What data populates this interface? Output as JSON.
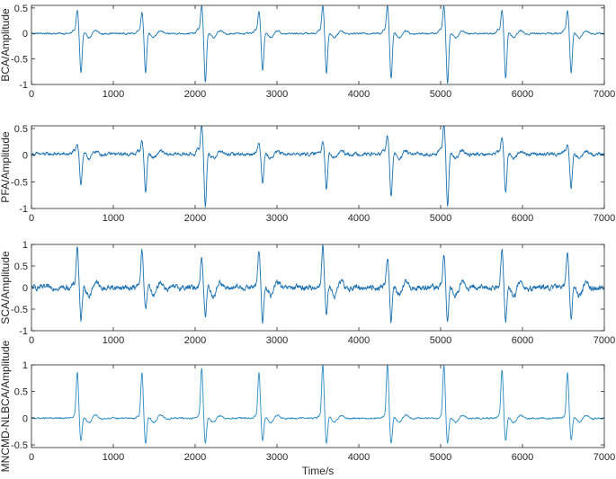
{
  "chart_data": [
    {
      "type": "line",
      "ylabel": "BCA/Amplitude",
      "xlabel": "",
      "xlim": [
        0,
        7000
      ],
      "ylim": [
        -1,
        0.55
      ],
      "x_ticks": [
        "0",
        "1000",
        "2000",
        "3000",
        "4000",
        "5000",
        "6000",
        "7000"
      ],
      "y_ticks": [
        {
          "value": 0.5,
          "label": "0.5"
        },
        {
          "value": 0,
          "label": "0"
        },
        {
          "value": -0.5,
          "label": "-0.5"
        },
        {
          "value": -1,
          "label": "-1"
        }
      ],
      "series": [
        {
          "color": "#1f77b4",
          "peak_times": [
            560,
            1350,
            2080,
            2780,
            3560,
            4350,
            5040,
            5750,
            6550
          ],
          "peak_max": [
            0.45,
            0.42,
            0.55,
            0.45,
            0.55,
            0.55,
            0.55,
            0.45,
            0.45
          ],
          "peak_min": [
            -0.8,
            -0.8,
            -1.0,
            -0.75,
            -0.8,
            -0.9,
            -1.0,
            -0.9,
            -0.8
          ],
          "noise_level": 0.015,
          "baseline": 0.0
        }
      ]
    },
    {
      "type": "line",
      "ylabel": "PFA/Amplitude",
      "xlabel": "",
      "xlim": [
        0,
        7000
      ],
      "ylim": [
        -1,
        0.55
      ],
      "x_ticks": [
        "0",
        "1000",
        "2000",
        "3000",
        "4000",
        "5000",
        "6000",
        "7000"
      ],
      "y_ticks": [
        {
          "value": 0.5,
          "label": "0.5"
        },
        {
          "value": 0,
          "label": "0"
        },
        {
          "value": -0.5,
          "label": "-0.5"
        },
        {
          "value": -1,
          "label": "-1"
        }
      ],
      "series": [
        {
          "color": "#1a6fb0",
          "peak_times": [
            560,
            1350,
            2080,
            2780,
            3560,
            4350,
            5040,
            5750,
            6550
          ],
          "peak_max": [
            0.2,
            0.25,
            0.55,
            0.2,
            0.25,
            0.35,
            0.55,
            0.3,
            0.2
          ],
          "peak_min": [
            -0.6,
            -0.75,
            -1.0,
            -0.55,
            -0.7,
            -0.85,
            -1.0,
            -0.75,
            -0.65
          ],
          "noise_level": 0.03,
          "baseline": 0.02
        }
      ]
    },
    {
      "type": "line",
      "ylabel": "SCA/Amplitude",
      "xlabel": "",
      "xlim": [
        0,
        7000
      ],
      "ylim": [
        -1,
        1
      ],
      "x_ticks": [
        "0",
        "1000",
        "2000",
        "3000",
        "4000",
        "5000",
        "6000",
        "7000"
      ],
      "y_ticks": [
        {
          "value": 1,
          "label": "1"
        },
        {
          "value": 0.5,
          "label": "0.5"
        },
        {
          "value": 0,
          "label": "0"
        },
        {
          "value": -0.5,
          "label": "-0.5"
        },
        {
          "value": -1,
          "label": "-1"
        }
      ],
      "series": [
        {
          "color": "#1a6fb0",
          "peak_times": [
            560,
            1350,
            2080,
            2780,
            3560,
            4350,
            5040,
            5750,
            6550
          ],
          "peak_max": [
            0.95,
            0.85,
            0.7,
            0.85,
            0.95,
            0.7,
            0.75,
            0.9,
            0.85
          ],
          "peak_min": [
            -0.85,
            -0.55,
            -0.75,
            -0.85,
            -0.7,
            -0.85,
            -0.9,
            -0.85,
            -0.8
          ],
          "noise_level": 0.06,
          "baseline": 0.0
        }
      ]
    },
    {
      "type": "line",
      "ylabel": "MNCMD-NLBCA/Amplitude",
      "xlabel": "Time/s",
      "xlim": [
        0,
        7000
      ],
      "ylim": [
        -0.55,
        1
      ],
      "x_ticks": [
        "0",
        "1000",
        "2000",
        "3000",
        "4000",
        "5000",
        "6000",
        "7000"
      ],
      "y_ticks": [
        {
          "value": 1,
          "label": "1"
        },
        {
          "value": 0.5,
          "label": "0.5"
        },
        {
          "value": 0,
          "label": "0"
        },
        {
          "value": -0.5,
          "label": "-0.5"
        }
      ],
      "series": [
        {
          "color": "#2b8cc4",
          "peak_times": [
            560,
            1350,
            2080,
            2780,
            3560,
            4350,
            5040,
            5750,
            6550
          ],
          "peak_max": [
            0.85,
            0.85,
            0.95,
            0.85,
            1.0,
            1.0,
            1.0,
            0.9,
            0.85
          ],
          "peak_min": [
            -0.45,
            -0.5,
            -0.5,
            -0.45,
            -0.5,
            -0.5,
            -0.5,
            -0.45,
            -0.45
          ],
          "noise_level": 0.015,
          "baseline": 0.0
        }
      ]
    }
  ]
}
